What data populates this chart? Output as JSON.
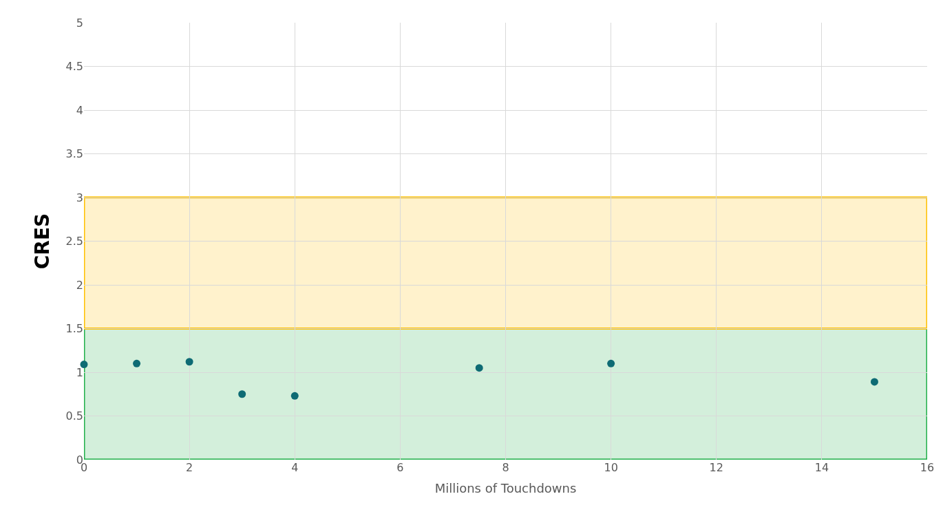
{
  "chart_data": {
    "type": "scatter",
    "xlabel": "Millions of Touchdowns",
    "ylabel": "CRES",
    "x": [
      0,
      1,
      2,
      3,
      4,
      7.5,
      10,
      15
    ],
    "series": [
      {
        "color": "#0e6b74",
        "values": [
          1.09,
          1.1,
          1.12,
          0.75,
          0.73,
          1.05,
          1.1,
          0.89
        ]
      }
    ],
    "xlim": [
      0,
      16
    ],
    "xticks": [
      0,
      2,
      4,
      6,
      8,
      10,
      12,
      14,
      16
    ],
    "ylim": [
      0,
      5
    ],
    "yticks": [
      0,
      0.5,
      1,
      1.5,
      2,
      2.5,
      3,
      3.5,
      4,
      4.5,
      5
    ],
    "bands": [
      {
        "axis": "y",
        "from": 0,
        "to": 1.5,
        "color": "#22b04b"
      },
      {
        "axis": "y",
        "from": 1.5,
        "to": 3,
        "color": "#ffc000"
      }
    ],
    "grid": true,
    "marker": "circle"
  }
}
